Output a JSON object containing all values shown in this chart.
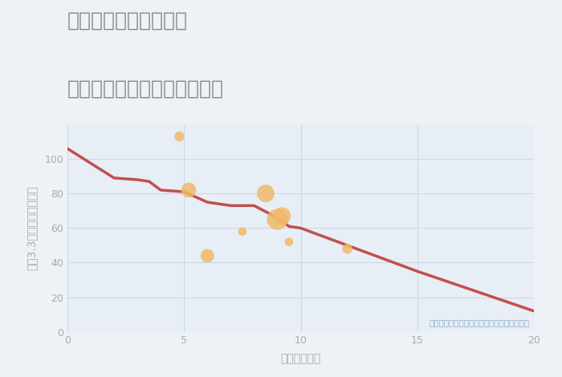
{
  "title_line1": "福岡県太宰府市御笠の",
  "title_line2": "駅距離別中古マンション価格",
  "xlabel": "駅距離（分）",
  "ylabel": "坪（3.3㎡）単価（万円）",
  "background_color": "#eef2f6",
  "plot_bg_color": "#e8eef5",
  "line_color": "#c0504d",
  "line_x": [
    0,
    2,
    3,
    3.5,
    4,
    5,
    6,
    7,
    8,
    9,
    9.5,
    10,
    12,
    15,
    20
  ],
  "line_y": [
    106,
    89,
    88,
    87,
    82,
    81,
    75,
    73,
    73,
    66,
    61,
    60,
    50,
    35,
    12
  ],
  "scatter_x": [
    4.8,
    5.2,
    6.0,
    7.5,
    8.5,
    9.0,
    9.2,
    9.5,
    12.0
  ],
  "scatter_y": [
    113,
    82,
    44,
    58,
    80,
    65,
    67,
    52,
    48
  ],
  "scatter_sizes": [
    80,
    180,
    150,
    60,
    250,
    350,
    250,
    60,
    80
  ],
  "scatter_color": "#f0b969",
  "scatter_alpha": 0.85,
  "annotation": "円の大きさは、取引のあった物件面積を示す",
  "annotation_color": "#8aadca",
  "xlim": [
    0,
    20
  ],
  "ylim": [
    0,
    120
  ],
  "xticks": [
    0,
    5,
    10,
    15,
    20
  ],
  "yticks": [
    0,
    20,
    40,
    60,
    80,
    100
  ],
  "grid_color": "#c8d8e8",
  "title_color": "#888888",
  "tick_color": "#aaaaaa",
  "title_fontsize": 18,
  "label_fontsize": 10
}
